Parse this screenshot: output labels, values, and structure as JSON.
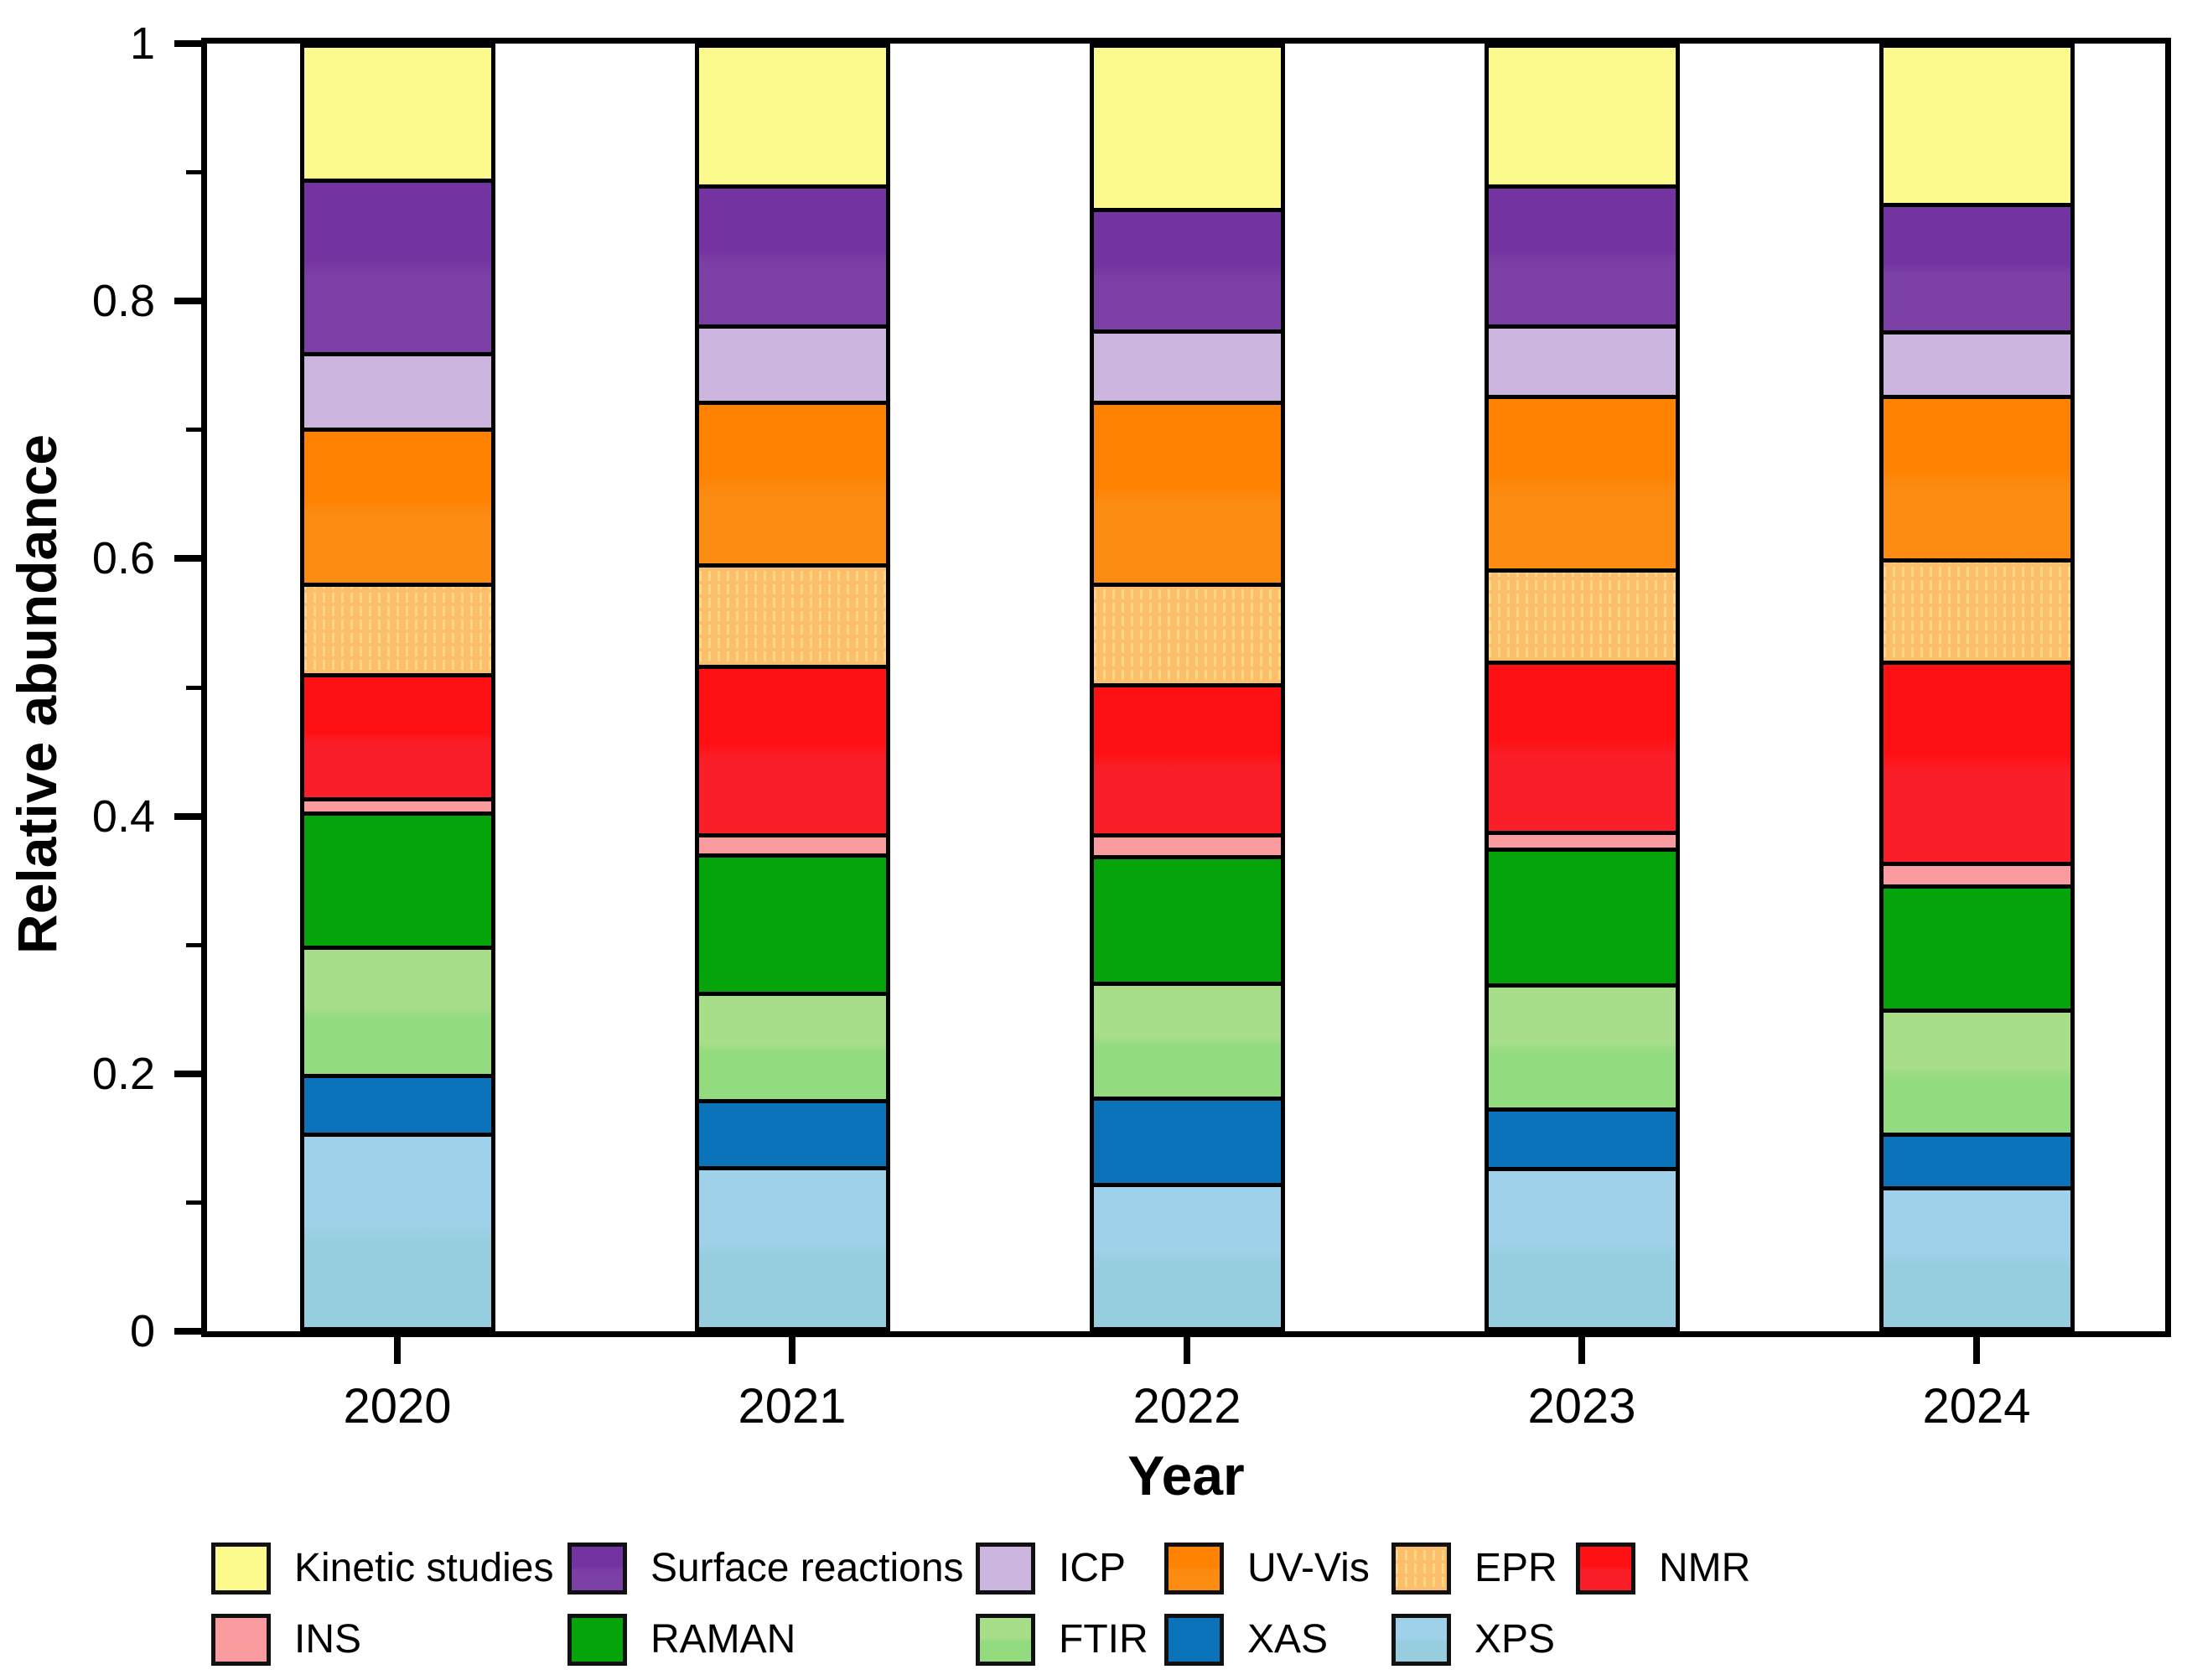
{
  "figure": {
    "x_axis_title": "Year",
    "y_axis_title": "Relative abundance"
  },
  "chart_data": {
    "type": "bar",
    "stacked": true,
    "orientation": "vertical",
    "title": "",
    "xlabel": "Year",
    "ylabel": "Relative abundance",
    "ylim": [
      0,
      1
    ],
    "grid": false,
    "legend_position": "bottom",
    "categories": [
      "2020",
      "2021",
      "2022",
      "2023",
      "2024"
    ],
    "y_ticks": {
      "major_values": [
        0,
        0.2,
        0.4,
        0.6,
        0.8,
        1
      ],
      "major_labels": [
        "0",
        "0.2",
        "0.4",
        "0.6",
        "0.8",
        "1"
      ],
      "minor_values": [
        0.1,
        0.3,
        0.5,
        0.7,
        0.9
      ]
    },
    "series": [
      {
        "name": "XPS",
        "color": "#A0D1EA",
        "color2": "#96CEDF",
        "values": [
          0.152,
          0.126,
          0.113,
          0.125,
          0.11
        ]
      },
      {
        "name": "XAS",
        "color": "#0A73BA",
        "values": [
          0.046,
          0.052,
          0.067,
          0.047,
          0.042
        ]
      },
      {
        "name": "FTIR",
        "color": "#A8DE8A",
        "color2": "#93DB7F",
        "values": [
          0.1,
          0.084,
          0.09,
          0.097,
          0.097
        ]
      },
      {
        "name": "RAMAN",
        "color": "#04A40A",
        "values": [
          0.105,
          0.108,
          0.099,
          0.106,
          0.097
        ]
      },
      {
        "name": "INS",
        "color": "#FA9BA0",
        "values": [
          0.011,
          0.016,
          0.017,
          0.013,
          0.018
        ]
      },
      {
        "name": "NMR",
        "color": "#FF1013",
        "color2": "#FA1E28",
        "values": [
          0.097,
          0.132,
          0.117,
          0.133,
          0.157
        ]
      },
      {
        "name": "EPR",
        "color": "#FBBF6B",
        "pattern_color": "#FFD685",
        "values": [
          0.071,
          0.079,
          0.079,
          0.072,
          0.08
        ]
      },
      {
        "name": "UV-Vis",
        "color": "#FF8201",
        "color2": "#FC8B12",
        "values": [
          0.121,
          0.127,
          0.142,
          0.136,
          0.128
        ]
      },
      {
        "name": "ICP",
        "color": "#CBB5DF",
        "values": [
          0.059,
          0.06,
          0.056,
          0.055,
          0.05
        ]
      },
      {
        "name": "Surface reactions",
        "color": "#7333A0",
        "color2": "#7B3FA5",
        "values": [
          0.136,
          0.109,
          0.095,
          0.109,
          0.1
        ]
      },
      {
        "name": "Kinetic studies",
        "color": "#FCFA8D",
        "values": [
          0.102,
          0.107,
          0.125,
          0.107,
          0.121
        ]
      }
    ],
    "legend_rows": [
      [
        "Kinetic studies",
        "Surface reactions",
        "ICP",
        "UV-Vis",
        "EPR",
        "NMR"
      ],
      [
        "INS",
        "RAMAN",
        "FTIR",
        "XAS",
        "XPS"
      ]
    ]
  }
}
